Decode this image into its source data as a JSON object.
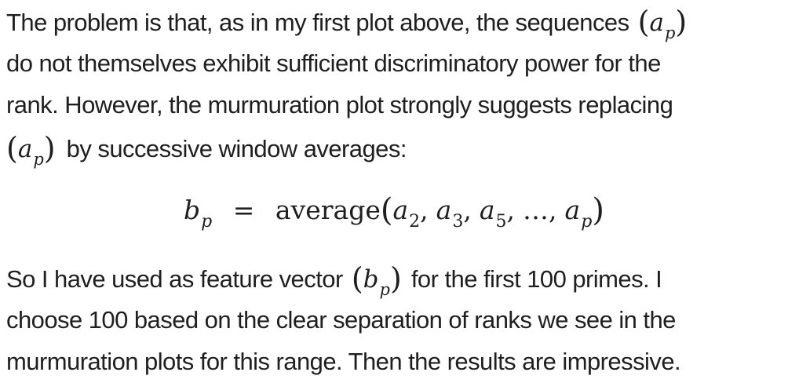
{
  "paragraph1": {
    "line1": "The problem is that, as in my first plot above, the sequences",
    "line2": "do not themselves exhibit sufficient discriminatory power for the",
    "line3": "rank. However, the murmuration plot strongly suggests replacing",
    "line4": "by successive window averages:"
  },
  "formula": {
    "lhs_var": "b",
    "lhs_sub": "p",
    "equals": "=",
    "func": "average",
    "args": [
      {
        "var": "a",
        "sub": "2"
      },
      {
        "var": "a",
        "sub": "3"
      },
      {
        "var": "a",
        "sub": "5"
      }
    ],
    "ellipsis": "…",
    "last_var": "a",
    "last_sub": "p"
  },
  "inline_math": {
    "a_var": "a",
    "a_sub": "p",
    "b_var": "b",
    "b_sub": "p"
  },
  "paragraph2": {
    "line1_prefix": "So I have used as feature vector",
    "line1_suffix": "for the first 100 primes. I",
    "line2": "choose 100 based on the clear separation of ranks we see in the",
    "line3": "murmuration plots for this range. Then the results are impressive."
  }
}
